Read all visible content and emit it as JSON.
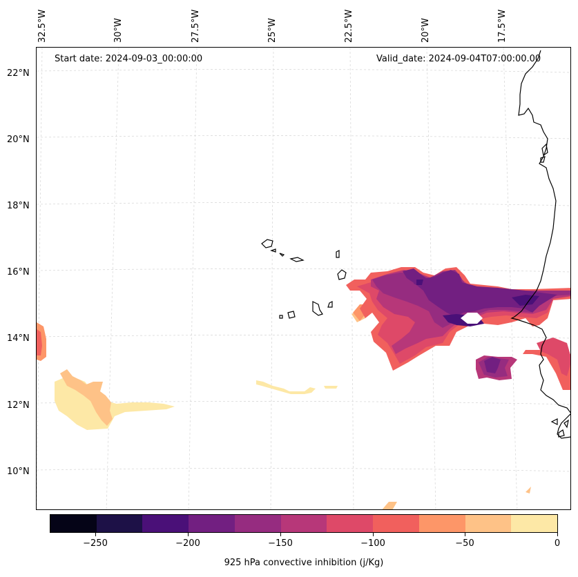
{
  "map": {
    "start_date": "Start date: 2024-09-03_00:00:00",
    "valid_date": "Valid_date: 2024-09-04T07:00:00.00",
    "longitude_labels": [
      "32.5°W",
      "30°W",
      "27.5°W",
      "25°W",
      "22.5°W",
      "20°W",
      "17.5°W"
    ],
    "latitude_labels": [
      "22°N",
      "20°N",
      "18°N",
      "16°N",
      "14°N",
      "12°N",
      "10°N"
    ],
    "variable": "925 hPa convective inhibition",
    "units": "j/Kg"
  },
  "colorbar": {
    "label": "925 hPa convective inhibition (j/Kg)",
    "tick_labels": [
      "−250",
      "−200",
      "−150",
      "−100",
      "−50",
      "0"
    ],
    "bins": [
      {
        "range": [
          -275,
          -250
        ],
        "color": "#050417"
      },
      {
        "range": [
          -250,
          -225
        ],
        "color": "#1d1147"
      },
      {
        "range": [
          -225,
          -200
        ],
        "color": "#4a1078"
      },
      {
        "range": [
          -200,
          -175
        ],
        "color": "#721f81"
      },
      {
        "range": [
          -175,
          -150
        ],
        "color": "#962c80"
      },
      {
        "range": [
          -150,
          -125
        ],
        "color": "#b73779"
      },
      {
        "range": [
          -125,
          -100
        ],
        "color": "#de4968"
      },
      {
        "range": [
          -100,
          -75
        ],
        "color": "#f1605d"
      },
      {
        "range": [
          -75,
          -50
        ],
        "color": "#fd9668"
      },
      {
        "range": [
          -50,
          -25
        ],
        "color": "#fec287"
      },
      {
        "range": [
          -25,
          0
        ],
        "color": "#fde8a6"
      }
    ]
  }
}
